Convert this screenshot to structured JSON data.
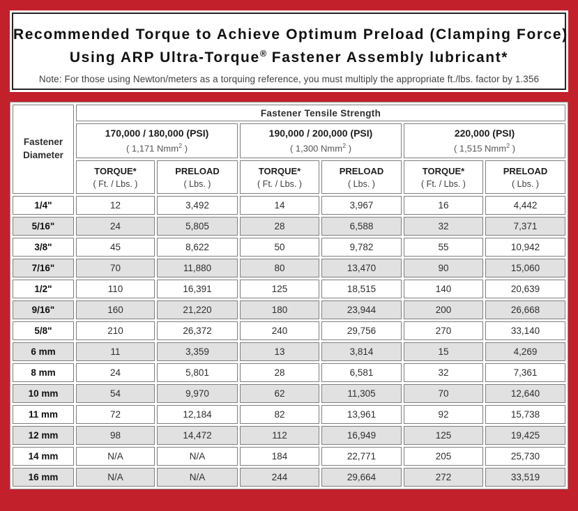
{
  "title": {
    "line1": "Recommended Torque to Achieve Optimum Preload (Clamping Force)",
    "line2_pre": "Using ARP Ultra-Torque",
    "line2_sup": "®",
    "line2_post": " Fastener Assembly lubricant*",
    "note": "Note: For those using Newton/meters as a torquing reference, you must multiply the appropriate ft./lbs. factor by 1.356"
  },
  "table": {
    "corner_line1": "Fastener",
    "corner_line2": "Diameter",
    "main_header": "Fastener Tensile Strength",
    "groups": [
      {
        "psi": "170,000 / 180,000 (PSI)",
        "nmm_pre": "( 1,171 Nmm",
        "nmm_sup": "2",
        "nmm_post": " )"
      },
      {
        "psi": "190,000 / 200,000 (PSI)",
        "nmm_pre": "( 1,300 Nmm",
        "nmm_sup": "2",
        "nmm_post": " )"
      },
      {
        "psi": "220,000 (PSI)",
        "nmm_pre": "( 1,515 Nmm",
        "nmm_sup": "2",
        "nmm_post": " )"
      }
    ],
    "sub_headers": {
      "torque": "TORQUE*",
      "torque_unit": "( Ft. / Lbs. )",
      "preload": "PRELOAD",
      "preload_unit": "( Lbs. )"
    },
    "rows": [
      {
        "d": "1/4\"",
        "v": [
          "12",
          "3,492",
          "14",
          "3,967",
          "16",
          "4,442"
        ]
      },
      {
        "d": "5/16\"",
        "v": [
          "24",
          "5,805",
          "28",
          "6,588",
          "32",
          "7,371"
        ]
      },
      {
        "d": "3/8\"",
        "v": [
          "45",
          "8,622",
          "50",
          "9,782",
          "55",
          "10,942"
        ]
      },
      {
        "d": "7/16\"",
        "v": [
          "70",
          "11,880",
          "80",
          "13,470",
          "90",
          "15,060"
        ]
      },
      {
        "d": "1/2\"",
        "v": [
          "110",
          "16,391",
          "125",
          "18,515",
          "140",
          "20,639"
        ]
      },
      {
        "d": "9/16\"",
        "v": [
          "160",
          "21,220",
          "180",
          "23,944",
          "200",
          "26,668"
        ]
      },
      {
        "d": "5/8\"",
        "v": [
          "210",
          "26,372",
          "240",
          "29,756",
          "270",
          "33,140"
        ]
      },
      {
        "d": "6 mm",
        "v": [
          "11",
          "3,359",
          "13",
          "3,814",
          "15",
          "4,269"
        ]
      },
      {
        "d": "8 mm",
        "v": [
          "24",
          "5,801",
          "28",
          "6,581",
          "32",
          "7,361"
        ]
      },
      {
        "d": "10 mm",
        "v": [
          "54",
          "9,970",
          "62",
          "11,305",
          "70",
          "12,640"
        ]
      },
      {
        "d": "11 mm",
        "v": [
          "72",
          "12,184",
          "82",
          "13,961",
          "92",
          "15,738"
        ]
      },
      {
        "d": "12 mm",
        "v": [
          "98",
          "14,472",
          "112",
          "16,949",
          "125",
          "19,425"
        ]
      },
      {
        "d": "14 mm",
        "v": [
          "N/A",
          "N/A",
          "184",
          "22,771",
          "205",
          "25,730"
        ]
      },
      {
        "d": "16 mm",
        "v": [
          "N/A",
          "N/A",
          "244",
          "29,664",
          "272",
          "33,519"
        ]
      }
    ]
  },
  "colors": {
    "frame_red": "#c2202b",
    "header_gray": "#d2d2d2",
    "stripe_gray": "#e1e1e1",
    "cell_border": "#7e7e7e",
    "title_border": "#242424"
  }
}
